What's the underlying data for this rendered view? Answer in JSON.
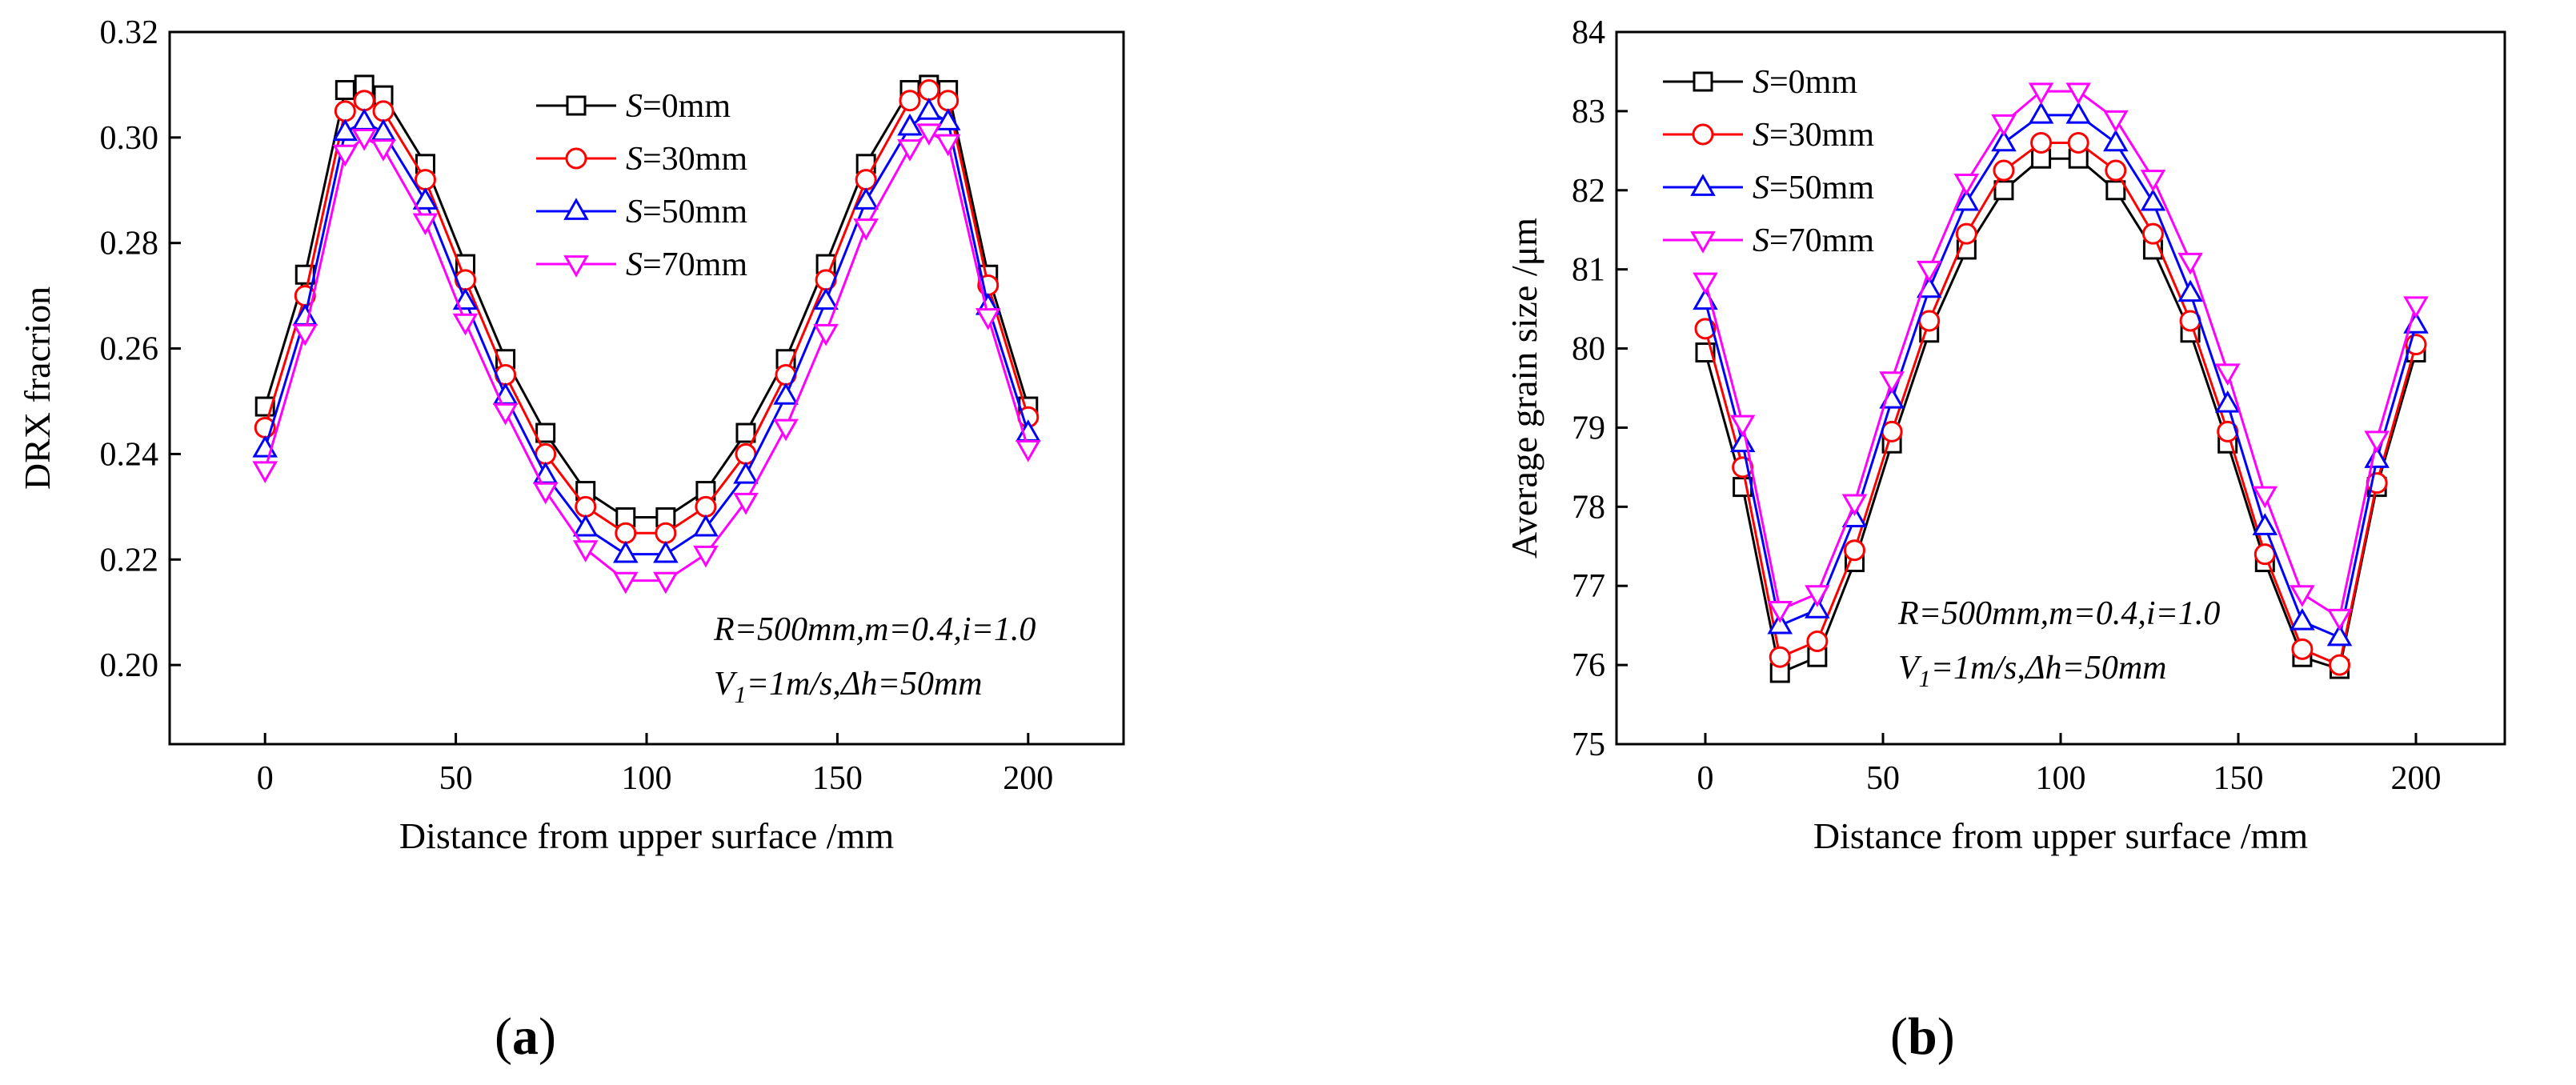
{
  "panels": {
    "a": {
      "label_open": "(",
      "label_letter": "a",
      "label_close": ")"
    },
    "b": {
      "label_open": "(",
      "label_letter": "b",
      "label_close": ")"
    }
  },
  "chart_data": [
    {
      "type": "line",
      "title": "",
      "xlabel": "Distance from upper surface /mm",
      "ylabel": "DRX fracrion",
      "xlim": [
        -25,
        225
      ],
      "ylim": [
        0.185,
        0.32
      ],
      "xticks": [
        0,
        50,
        100,
        150,
        200
      ],
      "yticks": [
        0.2,
        0.22,
        0.24,
        0.26,
        0.28,
        0.3,
        0.32
      ],
      "ytick_labels": [
        "0.20",
        "0.22",
        "0.24",
        "0.26",
        "0.28",
        "0.30",
        "0.32"
      ],
      "legend_position": "top-center",
      "annotations": [
        {
          "italic": "R",
          "rest": "=500mm,m=0.4,i=1.0"
        },
        {
          "italic": "V",
          "sub": "1",
          "rest": "=1m/s,Δh=50mm"
        }
      ],
      "x": [
        0,
        10.5,
        21,
        26,
        31,
        42,
        52.5,
        63,
        73.5,
        84,
        94.5,
        105,
        115.5,
        126,
        136.5,
        147,
        157.5,
        169,
        174,
        179,
        189.5,
        200
      ],
      "series": [
        {
          "name": "S=0mm",
          "prefix": "S",
          "suffix": "=0mm",
          "color": "#000000",
          "marker": "square",
          "values": [
            0.249,
            0.274,
            0.309,
            0.31,
            0.308,
            0.295,
            0.276,
            0.258,
            0.244,
            0.233,
            0.228,
            0.228,
            0.233,
            0.244,
            0.258,
            0.276,
            0.295,
            0.309,
            0.31,
            0.309,
            0.274,
            0.249
          ]
        },
        {
          "name": "S=30mm",
          "prefix": "S",
          "suffix": "=30mm",
          "color": "#ff0000",
          "marker": "circle",
          "values": [
            0.245,
            0.27,
            0.305,
            0.307,
            0.305,
            0.292,
            0.273,
            0.255,
            0.24,
            0.23,
            0.225,
            0.225,
            0.23,
            0.24,
            0.255,
            0.273,
            0.292,
            0.307,
            0.309,
            0.307,
            0.272,
            0.247
          ]
        },
        {
          "name": "S=50mm",
          "prefix": "S",
          "suffix": "=50mm",
          "color": "#0000ff",
          "marker": "triangle-up",
          "values": [
            0.241,
            0.266,
            0.301,
            0.303,
            0.301,
            0.288,
            0.269,
            0.251,
            0.236,
            0.226,
            0.221,
            0.221,
            0.226,
            0.236,
            0.251,
            0.269,
            0.288,
            0.302,
            0.305,
            0.303,
            0.268,
            0.244
          ]
        },
        {
          "name": "S=70mm",
          "prefix": "S",
          "suffix": "=70mm",
          "color": "#ff00ff",
          "marker": "triangle-down",
          "values": [
            0.237,
            0.263,
            0.297,
            0.3,
            0.298,
            0.284,
            0.265,
            0.248,
            0.233,
            0.222,
            0.216,
            0.216,
            0.221,
            0.231,
            0.245,
            0.263,
            0.283,
            0.298,
            0.301,
            0.299,
            0.266,
            0.241
          ]
        }
      ]
    },
    {
      "type": "line",
      "title": "",
      "xlabel": "Distance from upper surface /mm",
      "ylabel": "Average grain size /μm",
      "xlim": [
        -25,
        225
      ],
      "ylim": [
        75,
        84
      ],
      "xticks": [
        0,
        50,
        100,
        150,
        200
      ],
      "yticks": [
        75,
        76,
        77,
        78,
        79,
        80,
        81,
        82,
        83,
        84
      ],
      "ytick_labels": [
        "75",
        "76",
        "77",
        "78",
        "79",
        "80",
        "81",
        "82",
        "83",
        "84"
      ],
      "legend_position": "top-left",
      "annotations": [
        {
          "italic": "R",
          "rest": "=500mm,m=0.4,i=1.0"
        },
        {
          "italic": "V",
          "sub": "1",
          "rest": "=1m/s,Δh=50mm"
        }
      ],
      "x": [
        0,
        10.5,
        21,
        31.5,
        42,
        52.5,
        63,
        73.5,
        84,
        94.5,
        105,
        115.5,
        126,
        136.5,
        147,
        157.5,
        168,
        178.5,
        189,
        200
      ],
      "series": [
        {
          "name": "S=0mm",
          "prefix": "S",
          "suffix": "=0mm",
          "color": "#000000",
          "marker": "square",
          "values": [
            79.95,
            78.25,
            75.9,
            76.1,
            77.3,
            78.8,
            80.2,
            81.25,
            82.0,
            82.4,
            82.4,
            82.0,
            81.25,
            80.2,
            78.8,
            77.3,
            76.1,
            75.95,
            78.25,
            79.95
          ]
        },
        {
          "name": "S=30mm",
          "prefix": "S",
          "suffix": "=30mm",
          "color": "#ff0000",
          "marker": "circle",
          "values": [
            80.25,
            78.5,
            76.1,
            76.3,
            77.45,
            78.95,
            80.35,
            81.45,
            82.25,
            82.6,
            82.6,
            82.25,
            81.45,
            80.35,
            78.95,
            77.4,
            76.2,
            76.0,
            78.3,
            80.05
          ]
        },
        {
          "name": "S=50mm",
          "prefix": "S",
          "suffix": "=50mm",
          "color": "#0000ff",
          "marker": "triangle-up",
          "values": [
            80.6,
            78.8,
            76.5,
            76.7,
            77.85,
            79.35,
            80.75,
            81.85,
            82.6,
            82.95,
            82.95,
            82.6,
            81.85,
            80.7,
            79.3,
            77.75,
            76.55,
            76.35,
            78.6,
            80.3
          ]
        },
        {
          "name": "S=70mm",
          "prefix": "S",
          "suffix": "=70mm",
          "color": "#ff00ff",
          "marker": "triangle-down",
          "values": [
            80.85,
            79.05,
            76.7,
            76.9,
            78.05,
            79.6,
            81.0,
            82.1,
            82.85,
            83.25,
            83.25,
            82.9,
            82.15,
            81.1,
            79.7,
            78.15,
            76.9,
            76.6,
            78.85,
            80.55
          ]
        }
      ]
    }
  ]
}
